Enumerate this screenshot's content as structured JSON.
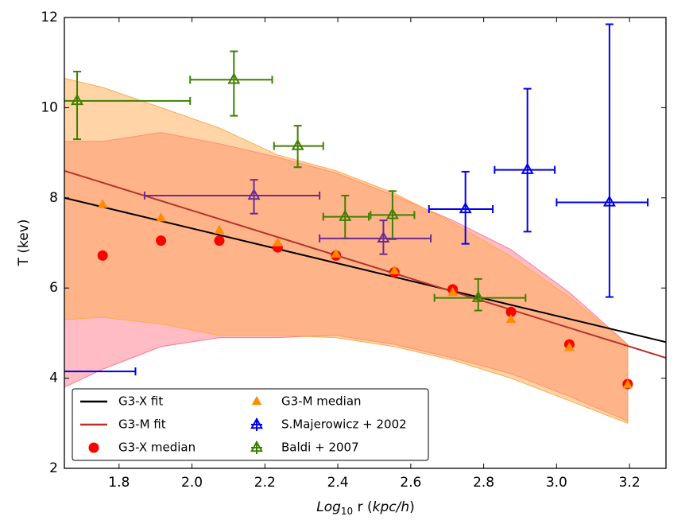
{
  "chart_data": {
    "type": "scatter",
    "xlim": [
      1.65,
      3.3
    ],
    "ylim": [
      2,
      12
    ],
    "xticks": [
      1.8,
      {
        "value": 2,
        "label": "2.0"
      },
      2.2,
      2.4,
      2.6,
      2.8,
      {
        "value": 3,
        "label": "3.0"
      },
      3.2
    ],
    "yticks": [
      2,
      4,
      6,
      8,
      10,
      12
    ],
    "y_label": "T (kev)",
    "x_label": {
      "base": "Log",
      "sub": "10",
      "mid": " r (",
      "unit": "kpc/h",
      "end": ")"
    },
    "legend": "lower left",
    "bands": [
      {
        "color": "#ff7a8a",
        "x": [
          1.65,
          1.755,
          1.915,
          2.075,
          2.235,
          2.395,
          2.555,
          2.715,
          2.875,
          3.035,
          3.195
        ],
        "upper": [
          9.25,
          9.25,
          9.45,
          9.2,
          8.9,
          8.55,
          8.05,
          7.5,
          6.85,
          5.9,
          4.75
        ],
        "lower": [
          3.8,
          4.2,
          4.7,
          4.9,
          4.9,
          4.95,
          4.75,
          4.45,
          4.1,
          3.6,
          3.05
        ]
      },
      {
        "color": "#ffa94d",
        "x": [
          1.65,
          1.755,
          1.915,
          2.075,
          2.235,
          2.395,
          2.555,
          2.715,
          2.875,
          3.035,
          3.195
        ],
        "upper": [
          10.65,
          10.45,
          10.0,
          9.55,
          8.95,
          8.6,
          8.1,
          7.45,
          6.7,
          5.8,
          4.75
        ],
        "lower": [
          5.3,
          5.35,
          5.2,
          4.95,
          4.95,
          4.9,
          4.7,
          4.4,
          4.0,
          3.5,
          3.0
        ]
      }
    ],
    "lines": [
      {
        "name": "G3-X fit",
        "color": "#000000",
        "x": [
          1.65,
          3.3
        ],
        "values": [
          8.0,
          4.8
        ]
      },
      {
        "name": "G3-M fit",
        "color": "#b5332c",
        "x": [
          1.65,
          3.3
        ],
        "values": [
          8.6,
          4.45
        ]
      }
    ],
    "series": [
      {
        "name": "G3-X median",
        "color": "#ff0000",
        "marker": "circle",
        "x": [
          1.755,
          1.915,
          2.075,
          2.235,
          2.395,
          2.555,
          2.715,
          2.875,
          3.035,
          3.195
        ],
        "values": [
          6.72,
          7.05,
          7.05,
          6.9,
          6.72,
          6.35,
          5.97,
          5.47,
          4.75,
          3.87
        ]
      },
      {
        "name": "G3-M median",
        "color": "#ff8c00",
        "marker": "triangle",
        "x": [
          1.755,
          1.915,
          2.075,
          2.235,
          2.395,
          2.555,
          2.715,
          2.875,
          3.035,
          3.195
        ],
        "values": [
          7.85,
          7.55,
          7.28,
          7.0,
          6.75,
          6.38,
          5.9,
          5.3,
          4.68,
          3.85
        ]
      }
    ],
    "errorbars": [
      {
        "name": "S.Majerowicz + 2002",
        "color": "#0000ee",
        "x": [
          2.75,
          2.92,
          3.145,
          1.5
        ],
        "values": [
          7.75,
          8.62,
          7.9,
          4.15
        ],
        "xlo": [
          2.65,
          2.83,
          3.0,
          1.155
        ],
        "xhi": [
          2.825,
          2.995,
          3.25,
          1.845
        ],
        "ylo": [
          6.98,
          7.25,
          5.8,
          4.15
        ],
        "yhi": [
          8.58,
          10.42,
          11.85,
          4.15
        ]
      },
      {
        "name": "Baldi + 2007",
        "color": "#3f7f00",
        "x": [
          1.685,
          2.115,
          2.29,
          2.42,
          2.55,
          2.785
        ],
        "values": [
          10.15,
          10.62,
          9.15,
          7.58,
          7.62,
          5.78
        ],
        "xlo": [
          1.375,
          1.995,
          2.225,
          2.36,
          2.49,
          2.665
        ],
        "xhi": [
          1.995,
          2.22,
          2.36,
          2.485,
          2.61,
          2.915
        ],
        "ylo": [
          9.3,
          9.82,
          8.68,
          7.1,
          7.08,
          5.5
        ],
        "yhi": [
          10.8,
          11.25,
          9.6,
          8.05,
          8.15,
          6.2
        ]
      },
      {
        "color": "#6a2c91",
        "x": [
          2.17,
          2.525
        ],
        "values": [
          8.05,
          7.1
        ],
        "xlo": [
          1.87,
          2.35
        ],
        "xhi": [
          2.35,
          2.655
        ],
        "ylo": [
          7.65,
          6.75
        ],
        "yhi": [
          8.4,
          7.5
        ]
      }
    ]
  }
}
